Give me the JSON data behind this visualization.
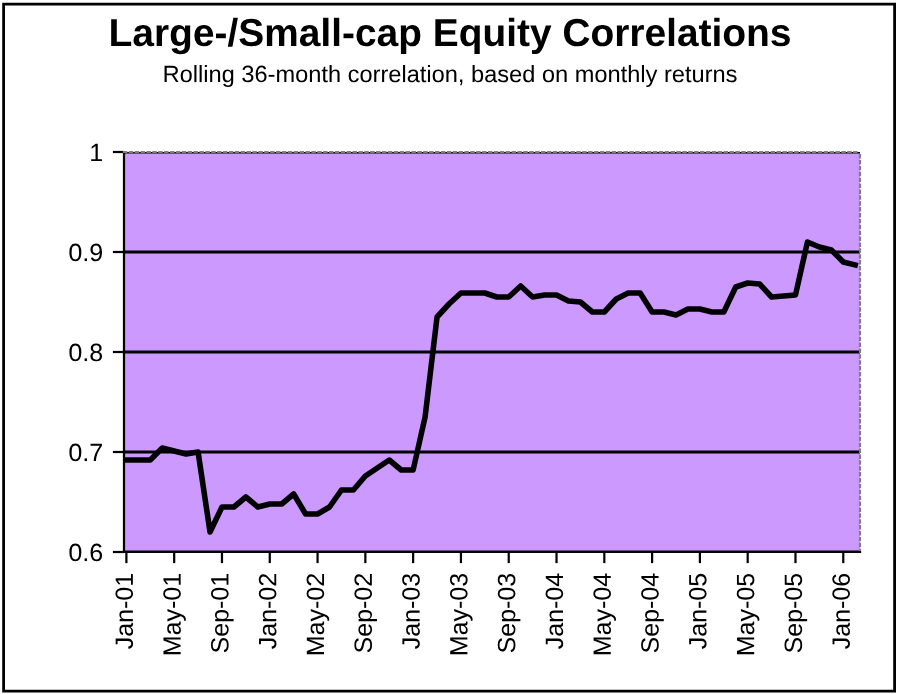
{
  "chart_data": {
    "type": "line",
    "title": "Large-/Small-cap Equity Correlations",
    "subtitle": "Rolling 36-month correlation, based on monthly returns",
    "categories": [
      "Jan-01",
      null,
      null,
      null,
      "May-01",
      null,
      null,
      null,
      "Sep-01",
      null,
      null,
      null,
      "Jan-02",
      null,
      null,
      null,
      "May-02",
      null,
      null,
      null,
      "Sep-02",
      null,
      null,
      null,
      "Jan-03",
      null,
      null,
      null,
      "May-03",
      null,
      null,
      null,
      "Sep-03",
      null,
      null,
      null,
      "Jan-04",
      null,
      null,
      null,
      "May-04",
      null,
      null,
      null,
      "Sep-04",
      null,
      null,
      null,
      "Jan-05",
      null,
      null,
      null,
      "May-05",
      null,
      null,
      null,
      "Sep-05",
      null,
      null,
      null,
      "Jan-06",
      null
    ],
    "series": [
      {
        "color": "#000000",
        "values": [
          0.692,
          0.692,
          0.692,
          0.704,
          0.701,
          0.698,
          0.7,
          0.62,
          0.645,
          0.645,
          0.655,
          0.645,
          0.648,
          0.648,
          0.658,
          0.638,
          0.638,
          0.645,
          0.662,
          0.662,
          0.676,
          0.684,
          0.692,
          0.682,
          0.682,
          0.735,
          0.835,
          0.848,
          0.859,
          0.859,
          0.859,
          0.855,
          0.855,
          0.866,
          0.855,
          0.857,
          0.857,
          0.851,
          0.85,
          0.84,
          0.84,
          0.853,
          0.859,
          0.859,
          0.84,
          0.84,
          0.837,
          0.843,
          0.843,
          0.84,
          0.84,
          0.865,
          0.869,
          0.868,
          0.855,
          0.856,
          0.857,
          0.91,
          0.905,
          0.902,
          0.89,
          0.887
        ]
      }
    ],
    "ylim": [
      0.6,
      1
    ],
    "yticks": [
      0.6,
      0.7,
      0.8,
      0.9,
      1
    ],
    "grid": "y",
    "legend": false,
    "marker": "none",
    "line_style": "solid"
  }
}
